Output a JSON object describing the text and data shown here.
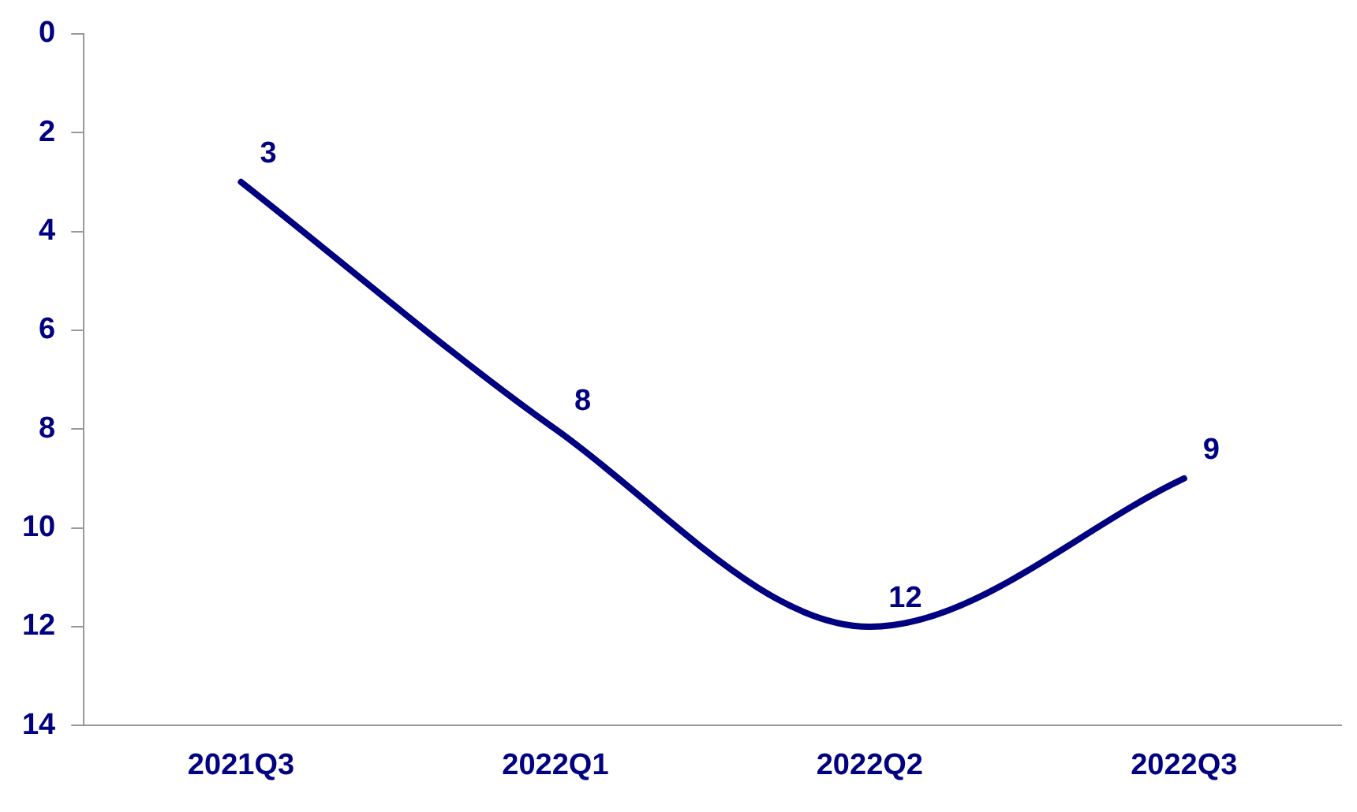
{
  "chart_data": {
    "type": "line",
    "categories": [
      "2021Q3",
      "2022Q1",
      "2022Q2",
      "2022Q3"
    ],
    "series": [
      {
        "color": "#000080",
        "values": [
          3,
          8,
          12,
          9
        ]
      }
    ],
    "ylim": [
      14,
      0
    ],
    "yticks": [
      0,
      2,
      4,
      6,
      8,
      10,
      12,
      14
    ],
    "grid": false,
    "legend": false,
    "data_labels": true,
    "marker": "none",
    "line_style": "solid"
  }
}
